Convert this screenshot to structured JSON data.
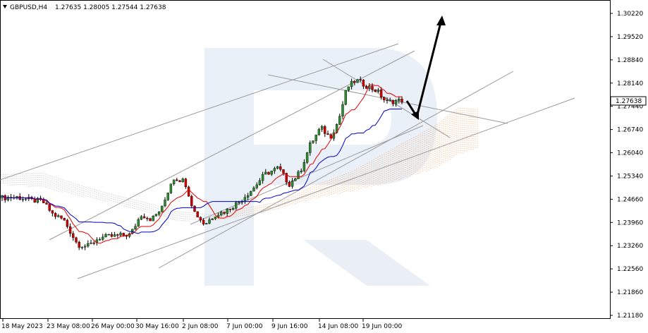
{
  "header": {
    "symbol_timeframe": "GBPUSD,H4",
    "ohlc": "1.27635 1.28005 1.27544 1.27638"
  },
  "price_tag": "1.27638",
  "colors": {
    "bull": "#2e8b2e",
    "bear": "#d40000",
    "tenkan": "#e10000",
    "kijun": "#0000cc",
    "trendline": "#9a9a9a",
    "cloud_bull": "#f2a86a",
    "cloud_bear": "#b8b8b8",
    "arrow": "#000000",
    "watermark": "#e6ecf4"
  },
  "chart_data": {
    "type": "candlestick",
    "symbol": "GBPUSD",
    "timeframe": "H4",
    "y_ticks": [
      "1.30220",
      "1.29520",
      "1.28840",
      "1.28140",
      "1.27440",
      "1.26740",
      "1.26040",
      "1.25340",
      "1.24660",
      "1.23960",
      "1.23260",
      "1.22560",
      "1.21860",
      "1.21180"
    ],
    "ylim": [
      1.2118,
      1.3022
    ],
    "x_ticks": [
      "18 May 2023",
      "23 May 08:00",
      "26 May 00:00",
      "30 May 16:00",
      "2 Jun 08:00",
      "7 Jun 00:00",
      "9 Jun 16:00",
      "14 Jun 08:00",
      "19 Jun 00:00"
    ],
    "indicators": [
      "Ichimoku Tenkan-sen",
      "Ichimoku Kijun-sen",
      "Ichimoku Cloud"
    ],
    "annotations": [
      "trend channel lines",
      "down arrow to support",
      "up arrow target"
    ]
  }
}
